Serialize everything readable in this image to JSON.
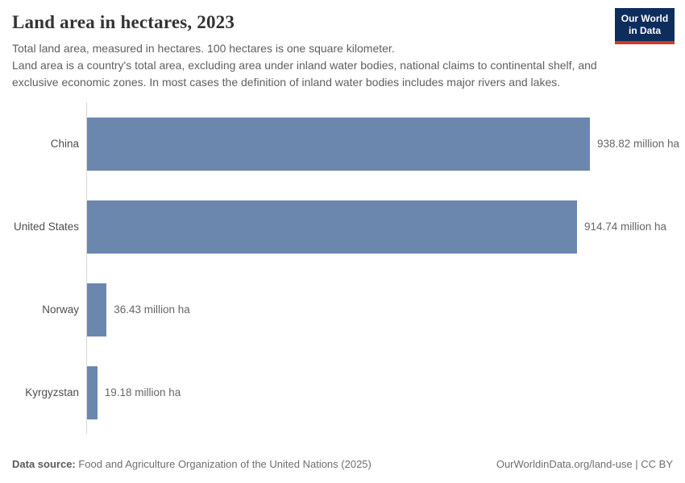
{
  "header": {
    "title": "Land area in hectares, 2023",
    "subtitle_line1": "Total land area, measured in hectares. 100 hectares is one square kilometer.",
    "subtitle_rest": "Land area is a country's total area, excluding area under inland water bodies, national claims to continental shelf, and exclusive economic zones. In most cases the definition of inland water bodies includes major rivers and lakes."
  },
  "logo": {
    "line1": "Our World",
    "line2": "in Data",
    "bg_color": "#0d2e5c",
    "accent_color": "#d8352b"
  },
  "chart_data": {
    "type": "bar",
    "orientation": "horizontal",
    "title": "Land area in hectares, 2023",
    "categories": [
      "China",
      "United States",
      "Norway",
      "Kyrgyzstan"
    ],
    "values": [
      938.82,
      914.74,
      36.43,
      19.18
    ],
    "value_labels": [
      "938.82 million ha",
      "914.74 million ha",
      "36.43 million ha",
      "19.18 million ha"
    ],
    "unit": "million ha",
    "xlim": [
      0,
      938.82
    ],
    "grid": false,
    "legend": false,
    "bar_color": "#6c87ae",
    "axis_color": "#d9d9d9",
    "label_color": "#4e4e4e",
    "value_color": "#666666"
  },
  "footer": {
    "source_label": "Data source:",
    "source_text": " Food and Agriculture Organization of the United Nations (2025)",
    "right_text": "OurWorldinData.org/land-use | CC BY"
  }
}
